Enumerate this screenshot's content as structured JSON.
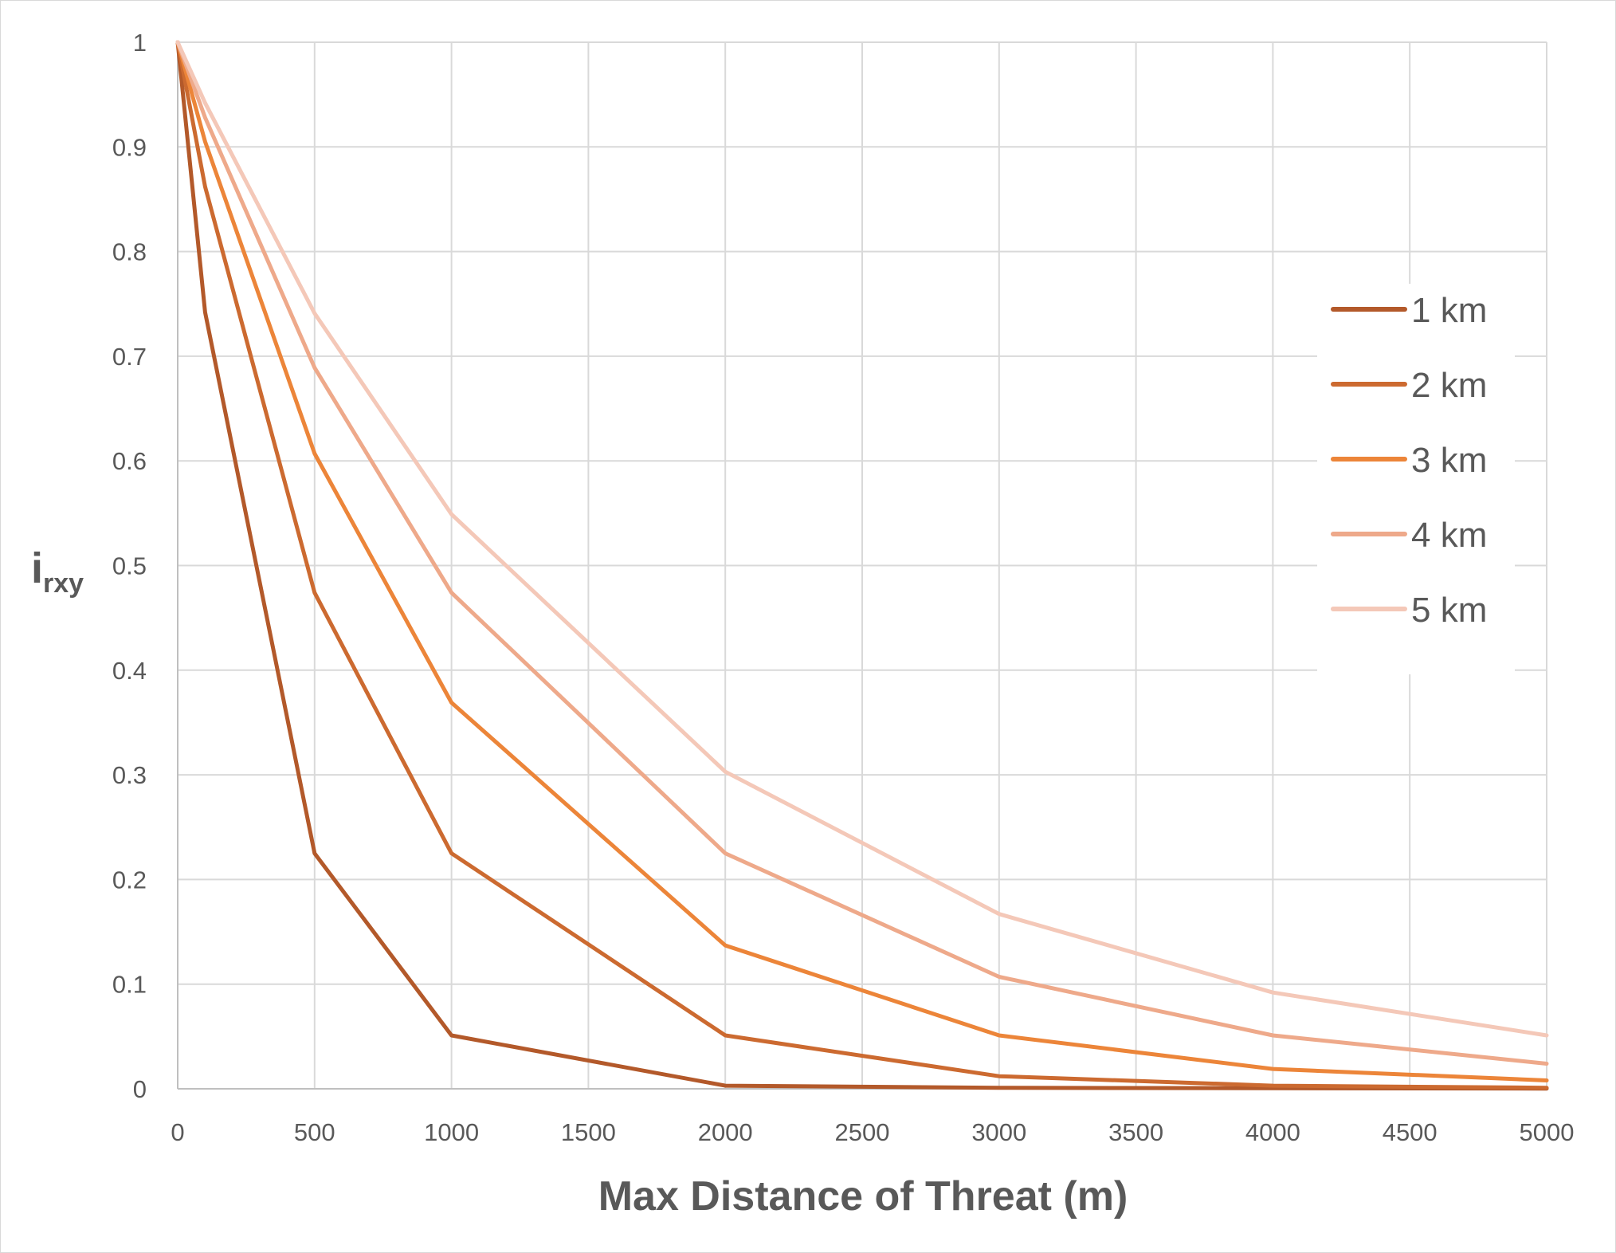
{
  "chart_data": {
    "type": "line",
    "title": "",
    "xlabel": "Max Distance of Threat (m)",
    "ylabel": {
      "main": "i",
      "sub": "rxy"
    },
    "xlim": [
      0,
      5000
    ],
    "ylim": [
      0,
      1
    ],
    "x_ticks": [
      0,
      500,
      1000,
      1500,
      2000,
      2500,
      3000,
      3500,
      4000,
      4500,
      5000
    ],
    "y_ticks": [
      0,
      0.1,
      0.2,
      0.3,
      0.4,
      0.5,
      0.6,
      0.7,
      0.8,
      0.9,
      1
    ],
    "y_tick_labels": [
      "0",
      "0.1",
      "0.2",
      "0.3",
      "0.4",
      "0.5",
      "0.6",
      "0.7",
      "0.8",
      "0.9",
      "1"
    ],
    "grid": true,
    "legend_position": "right",
    "x": [
      0,
      100,
      500,
      1000,
      2000,
      3000,
      4000,
      5000
    ],
    "series": [
      {
        "name": "1 km",
        "color": "#B3592A",
        "values": [
          1,
          0.742,
          0.225,
          0.051,
          0.003,
          0.001,
          0.0005,
          0.0002
        ]
      },
      {
        "name": "2 km",
        "color": "#CC6A30",
        "values": [
          1,
          0.862,
          0.474,
          0.225,
          0.051,
          0.012,
          0.003,
          0.001
        ]
      },
      {
        "name": "3 km",
        "color": "#EC8539",
        "values": [
          1,
          0.905,
          0.607,
          0.369,
          0.137,
          0.051,
          0.019,
          0.008
        ]
      },
      {
        "name": "4 km",
        "color": "#EEA98A",
        "values": [
          1,
          0.928,
          0.689,
          0.474,
          0.225,
          0.107,
          0.051,
          0.024
        ]
      },
      {
        "name": "5 km",
        "color": "#F4C8B8",
        "values": [
          1,
          0.942,
          0.741,
          0.549,
          0.303,
          0.167,
          0.092,
          0.051
        ]
      }
    ]
  }
}
